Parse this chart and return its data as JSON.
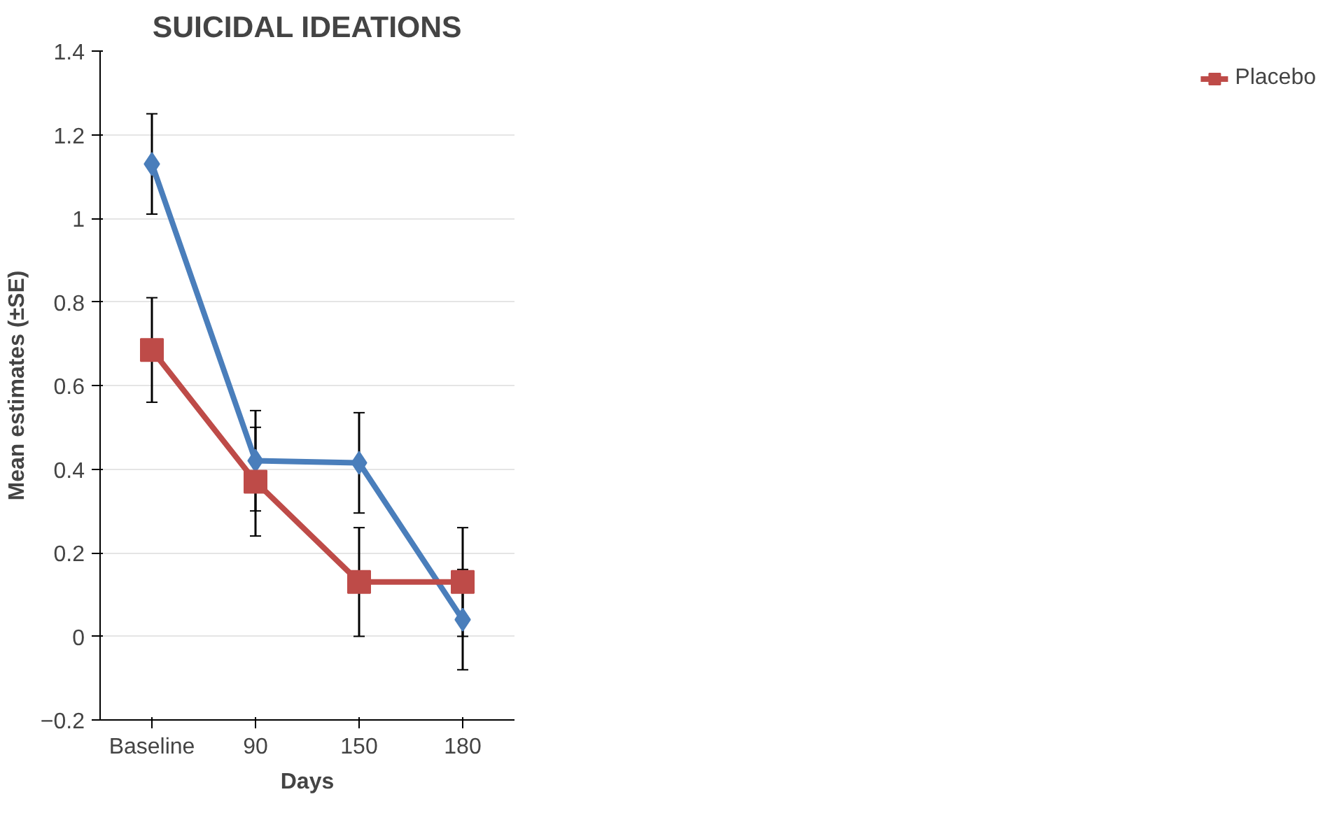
{
  "chart_data": {
    "type": "line",
    "title": "SUICIDAL IDEATIONS",
    "xlabel": "Days",
    "ylabel": "Mean estimates (±SE)",
    "categories": [
      "Baseline",
      "90",
      "150",
      "180"
    ],
    "series": [
      {
        "color": "#4a7ebb",
        "values": [
          1.13,
          0.42,
          0.415,
          0.04
        ],
        "errors": [
          0.12,
          0.12,
          0.12,
          0.12
        ],
        "marker": "diamond"
      },
      {
        "name": "Placebo",
        "color": "#be4b48",
        "values": [
          0.685,
          0.37,
          0.13,
          0.13
        ],
        "errors": [
          0.125,
          0.13,
          0.13,
          0.13
        ],
        "marker": "square"
      }
    ],
    "ylim": [
      -0.2,
      1.4
    ],
    "yticks": [
      -0.2,
      0,
      0.2,
      0.4,
      0.6,
      0.8,
      1,
      1.2,
      1.4
    ],
    "grid": "y",
    "legend": "right"
  }
}
